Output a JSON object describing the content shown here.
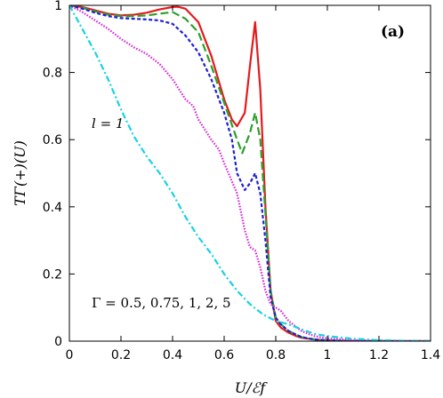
{
  "chart_data": {
    "type": "line",
    "panel_label": "(a)",
    "xlabel": "U/ℰf",
    "ylabel": "TΓ(+)(U)",
    "xlim": [
      0,
      1.4
    ],
    "ylim": [
      0,
      1
    ],
    "xticks": [
      "0",
      "0.2",
      "0.4",
      "0.6",
      "0.8",
      "1",
      "1.2",
      "1.4"
    ],
    "yticks": [
      "0",
      "0.2",
      "0.4",
      "0.6",
      "0.8",
      "1"
    ],
    "grid": false,
    "annotations": {
      "l_value": "l = 1",
      "gamma_values": "Γ = 0.5, 0.75, 1, 2, 5"
    },
    "series": [
      {
        "color": "#e41a1c",
        "dash": "solid",
        "x": [
          0,
          0.05,
          0.1,
          0.15,
          0.2,
          0.25,
          0.3,
          0.35,
          0.4,
          0.42,
          0.45,
          0.5,
          0.55,
          0.6,
          0.63,
          0.65,
          0.68,
          0.7,
          0.72,
          0.74,
          0.76,
          0.78,
          0.8,
          0.82,
          0.85,
          0.88,
          0.9,
          0.95,
          1.0,
          1.1,
          1.2,
          1.3,
          1.4
        ],
        "y": [
          1.0,
          0.995,
          0.985,
          0.975,
          0.97,
          0.972,
          0.978,
          0.988,
          0.995,
          0.996,
          0.99,
          0.95,
          0.85,
          0.72,
          0.66,
          0.64,
          0.68,
          0.82,
          0.95,
          0.75,
          0.4,
          0.15,
          0.06,
          0.04,
          0.025,
          0.015,
          0.01,
          0.005,
          0.002,
          0.0,
          0.0,
          0.0,
          0.0
        ]
      },
      {
        "color": "#2ca02c",
        "dash": "long-dash",
        "x": [
          0,
          0.05,
          0.1,
          0.15,
          0.2,
          0.25,
          0.3,
          0.35,
          0.4,
          0.45,
          0.5,
          0.55,
          0.6,
          0.65,
          0.67,
          0.7,
          0.72,
          0.74,
          0.76,
          0.78,
          0.8,
          0.82,
          0.85,
          0.9,
          0.95,
          1.0,
          1.1,
          1.2,
          1.3,
          1.4
        ],
        "y": [
          1.0,
          0.993,
          0.982,
          0.972,
          0.968,
          0.968,
          0.97,
          0.975,
          0.98,
          0.96,
          0.92,
          0.82,
          0.71,
          0.6,
          0.56,
          0.62,
          0.68,
          0.6,
          0.38,
          0.15,
          0.07,
          0.05,
          0.03,
          0.012,
          0.005,
          0.002,
          0.0,
          0.0,
          0.0,
          0.0
        ]
      },
      {
        "color": "#1f1fd6",
        "dash": "dot",
        "x": [
          0,
          0.05,
          0.1,
          0.15,
          0.2,
          0.25,
          0.3,
          0.35,
          0.4,
          0.45,
          0.5,
          0.55,
          0.6,
          0.63,
          0.65,
          0.68,
          0.7,
          0.72,
          0.74,
          0.76,
          0.78,
          0.8,
          0.82,
          0.85,
          0.9,
          0.95,
          1.0,
          1.1,
          1.2,
          1.3,
          1.4
        ],
        "y": [
          1.0,
          0.99,
          0.978,
          0.968,
          0.962,
          0.96,
          0.958,
          0.955,
          0.945,
          0.91,
          0.86,
          0.78,
          0.68,
          0.6,
          0.5,
          0.45,
          0.47,
          0.5,
          0.44,
          0.3,
          0.13,
          0.07,
          0.05,
          0.03,
          0.012,
          0.005,
          0.002,
          0.0,
          0.0,
          0.0,
          0.0
        ]
      },
      {
        "color": "#d62ad6",
        "dash": "dense-dot",
        "x": [
          0,
          0.05,
          0.1,
          0.15,
          0.2,
          0.25,
          0.3,
          0.35,
          0.4,
          0.45,
          0.48,
          0.5,
          0.55,
          0.58,
          0.6,
          0.65,
          0.68,
          0.7,
          0.72,
          0.74,
          0.76,
          0.78,
          0.8,
          0.82,
          0.85,
          0.9,
          0.95,
          1.0,
          1.1,
          1.2,
          1.3,
          1.4
        ],
        "y": [
          1.0,
          0.98,
          0.955,
          0.93,
          0.9,
          0.875,
          0.855,
          0.825,
          0.78,
          0.72,
          0.7,
          0.66,
          0.6,
          0.57,
          0.53,
          0.44,
          0.33,
          0.28,
          0.27,
          0.22,
          0.15,
          0.11,
          0.1,
          0.09,
          0.06,
          0.03,
          0.015,
          0.008,
          0.003,
          0.001,
          0.0,
          0.0
        ]
      },
      {
        "color": "#17d1e6",
        "dash": "dash-dot",
        "x": [
          0,
          0.05,
          0.1,
          0.15,
          0.2,
          0.25,
          0.3,
          0.35,
          0.4,
          0.45,
          0.5,
          0.55,
          0.6,
          0.65,
          0.7,
          0.75,
          0.8,
          0.85,
          0.9,
          0.95,
          1.0,
          1.1,
          1.2,
          1.3,
          1.4
        ],
        "y": [
          1.0,
          0.93,
          0.86,
          0.78,
          0.69,
          0.61,
          0.55,
          0.5,
          0.44,
          0.37,
          0.31,
          0.26,
          0.2,
          0.15,
          0.11,
          0.08,
          0.06,
          0.05,
          0.035,
          0.022,
          0.015,
          0.007,
          0.003,
          0.001,
          0.0
        ]
      }
    ]
  }
}
